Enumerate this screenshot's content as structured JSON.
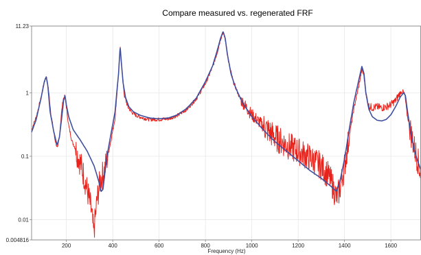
{
  "chart_data": {
    "type": "line",
    "title": "Compare measured vs. regenerated FRF",
    "xlabel": "Frequency (Hz)",
    "ylabel": "",
    "xlim": [
      50,
      1730
    ],
    "ylim": [
      0.004816,
      11.23
    ],
    "yscale": "log",
    "grid": true,
    "x_ticks": [
      {
        "value": 200,
        "label": "200"
      },
      {
        "value": 400,
        "label": "400"
      },
      {
        "value": 600,
        "label": "600"
      },
      {
        "value": 800,
        "label": "800"
      },
      {
        "value": 1000,
        "label": "1000"
      },
      {
        "value": 1200,
        "label": "1200"
      },
      {
        "value": 1400,
        "label": "1400"
      },
      {
        "value": 1600,
        "label": "1600"
      }
    ],
    "y_ticks": [
      {
        "value": 11.23,
        "label": "11.23"
      },
      {
        "value": 1,
        "label": "1"
      },
      {
        "value": 0.1,
        "label": "0.1"
      },
      {
        "value": 0.01,
        "label": "0.01"
      },
      {
        "value": 0.004816,
        "label": "0.004816"
      }
    ],
    "colors": {
      "measured": "#e8231c",
      "regenerated": "#3f4fa0",
      "grid": "#e4e4e4",
      "axis": "#777777"
    },
    "series": [
      {
        "key": "measured",
        "x": [
          50,
          70,
          90,
          105,
          113,
          122,
          135,
          150,
          162,
          170,
          178,
          186,
          194,
          200,
          210,
          225,
          240,
          255,
          270,
          285,
          300,
          310,
          318,
          325,
          332,
          345,
          355,
          365,
          375,
          390,
          410,
          425,
          432,
          440,
          450,
          465,
          480,
          500,
          530,
          560,
          600,
          640,
          680,
          720,
          760,
          800,
          830,
          850,
          865,
          876,
          885,
          900,
          920,
          950,
          1000,
          1050,
          1100,
          1150,
          1200,
          1250,
          1300,
          1330,
          1350,
          1365,
          1380,
          1400,
          1420,
          1440,
          1460,
          1475,
          1483,
          1492,
          1505,
          1520,
          1540,
          1560,
          1580,
          1600,
          1620,
          1640,
          1652,
          1660,
          1670,
          1685,
          1700,
          1715,
          1730
        ],
        "y": [
          0.26,
          0.42,
          0.8,
          1.5,
          1.78,
          1.2,
          0.42,
          0.19,
          0.13,
          0.2,
          0.45,
          0.8,
          0.88,
          0.6,
          0.3,
          0.17,
          0.13,
          0.09,
          0.06,
          0.035,
          0.02,
          0.012,
          0.006,
          0.011,
          0.02,
          0.04,
          0.05,
          0.06,
          0.09,
          0.16,
          0.4,
          2.0,
          5.2,
          2.3,
          0.9,
          0.6,
          0.5,
          0.44,
          0.4,
          0.38,
          0.38,
          0.39,
          0.44,
          0.55,
          0.8,
          1.4,
          2.5,
          4.2,
          7.0,
          9.0,
          7.0,
          3.0,
          1.5,
          0.8,
          0.45,
          0.3,
          0.2,
          0.15,
          0.12,
          0.095,
          0.07,
          0.05,
          0.034,
          0.022,
          0.03,
          0.07,
          0.2,
          0.55,
          1.2,
          2.3,
          1.9,
          1.0,
          0.62,
          0.58,
          0.6,
          0.58,
          0.6,
          0.65,
          0.75,
          1.0,
          1.05,
          0.95,
          0.45,
          0.25,
          0.14,
          0.09,
          0.05
        ]
      },
      {
        "key": "regenerated",
        "x": [
          50,
          70,
          90,
          105,
          113,
          120,
          130,
          145,
          160,
          170,
          180,
          188,
          194,
          200,
          210,
          230,
          260,
          290,
          320,
          340,
          350,
          358,
          365,
          375,
          390,
          410,
          425,
          432,
          438,
          445,
          455,
          470,
          490,
          520,
          560,
          600,
          640,
          680,
          720,
          760,
          800,
          830,
          850,
          865,
          876,
          885,
          895,
          910,
          930,
          960,
          1000,
          1050,
          1100,
          1150,
          1200,
          1250,
          1300,
          1340,
          1365,
          1380,
          1400,
          1420,
          1440,
          1460,
          1475,
          1484,
          1492,
          1505,
          1520,
          1540,
          1560,
          1580,
          1600,
          1620,
          1640,
          1655,
          1663,
          1672,
          1685,
          1700,
          1715,
          1730
        ],
        "y": [
          0.24,
          0.38,
          0.8,
          1.5,
          1.78,
          1.3,
          0.5,
          0.25,
          0.15,
          0.2,
          0.4,
          0.75,
          0.9,
          0.65,
          0.42,
          0.26,
          0.18,
          0.12,
          0.07,
          0.04,
          0.028,
          0.03,
          0.05,
          0.1,
          0.2,
          0.5,
          2.0,
          5.3,
          2.8,
          1.4,
          0.85,
          0.6,
          0.5,
          0.44,
          0.4,
          0.39,
          0.4,
          0.45,
          0.57,
          0.82,
          1.5,
          2.6,
          4.5,
          7.2,
          9.2,
          7.3,
          4.0,
          2.0,
          1.2,
          0.7,
          0.42,
          0.26,
          0.17,
          0.12,
          0.085,
          0.06,
          0.045,
          0.034,
          0.028,
          0.04,
          0.09,
          0.26,
          0.7,
          1.5,
          2.6,
          2.0,
          1.0,
          0.55,
          0.42,
          0.37,
          0.36,
          0.38,
          0.45,
          0.6,
          0.85,
          1.0,
          0.9,
          0.5,
          0.25,
          0.13,
          0.085,
          0.06
        ]
      }
    ]
  }
}
